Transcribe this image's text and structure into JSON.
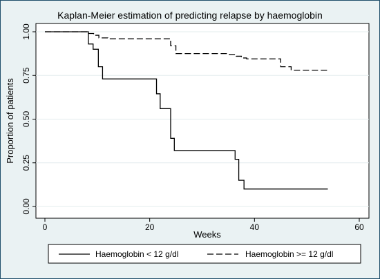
{
  "chart_data": {
    "type": "line",
    "title": "Kaplan-Meier estimation of predicting relapse by haemoglobin",
    "xlabel": "Weeks",
    "ylabel": "Proportion of patients",
    "xlim": [
      0,
      60
    ],
    "ylim": [
      0,
      1
    ],
    "x_ticks": [
      0,
      20,
      40,
      60
    ],
    "x_tick_labels": [
      "0",
      "20",
      "40",
      "60"
    ],
    "y_ticks": [
      0,
      0.25,
      0.5,
      0.75,
      1
    ],
    "y_tick_labels": [
      "0.00",
      "0.25",
      "0.50",
      "0.75",
      "1.00"
    ],
    "grid": true,
    "legend_position": "bottom",
    "step": true,
    "series": [
      {
        "name": "Haemoglobin < 12 g/dl",
        "style": "solid",
        "color": "#000000",
        "x": [
          0,
          8.3,
          9.2,
          10.2,
          11.0,
          21.3,
          22.0,
          24.0,
          24.7,
          36.3,
          37.0,
          38.0,
          54.0
        ],
        "y": [
          1.0,
          0.93,
          0.9,
          0.8,
          0.73,
          0.645,
          0.56,
          0.39,
          0.32,
          0.27,
          0.15,
          0.1,
          0.1
        ]
      },
      {
        "name": "Haemoglobin >= 12 g/dl",
        "style": "dashed",
        "color": "#000000",
        "x": [
          0,
          8.3,
          9.3,
          10.3,
          12.0,
          24.0,
          25.0,
          35.2,
          36.5,
          37.5,
          38.5,
          45.0,
          47.0,
          54.0
        ],
        "y": [
          1.0,
          0.99,
          0.98,
          0.965,
          0.96,
          0.92,
          0.875,
          0.87,
          0.86,
          0.85,
          0.845,
          0.8,
          0.78,
          0.78
        ]
      }
    ]
  }
}
